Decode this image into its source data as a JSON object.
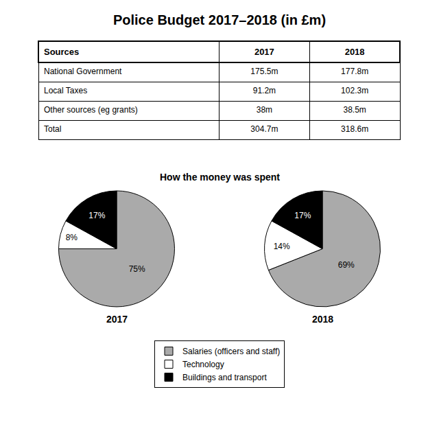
{
  "title": "Police Budget 2017–2018 (in £m)",
  "subtitle": "How the money was spent",
  "legend": "bottom",
  "chart_data": [
    {
      "type": "table",
      "columns": [
        "Sources",
        "2017",
        "2018"
      ],
      "rows": [
        [
          "National Government",
          "175.5m",
          "177.8m"
        ],
        [
          "Local Taxes",
          "91.2m",
          "102.3m"
        ],
        [
          "Other sources (eg grants)",
          "38m",
          "38.5m"
        ],
        [
          "Total",
          "304.7m",
          "318.6m"
        ]
      ]
    },
    {
      "type": "pie",
      "title": "2017",
      "categories": [
        "Salaries (officers and staff)",
        "Technology",
        "Buildings and transport"
      ],
      "values": [
        75,
        8,
        17
      ],
      "value_labels": [
        "75%",
        "8%",
        "17%"
      ],
      "colors": [
        "#aaaaaa",
        "#ffffff",
        "#000000"
      ],
      "data_labels": true
    },
    {
      "type": "pie",
      "title": "2018",
      "categories": [
        "Salaries (officers and staff)",
        "Technology",
        "Buildings and transport"
      ],
      "values": [
        69,
        14,
        17
      ],
      "value_labels": [
        "69%",
        "14%",
        "17%"
      ],
      "colors": [
        "#aaaaaa",
        "#ffffff",
        "#000000"
      ],
      "data_labels": true
    }
  ]
}
